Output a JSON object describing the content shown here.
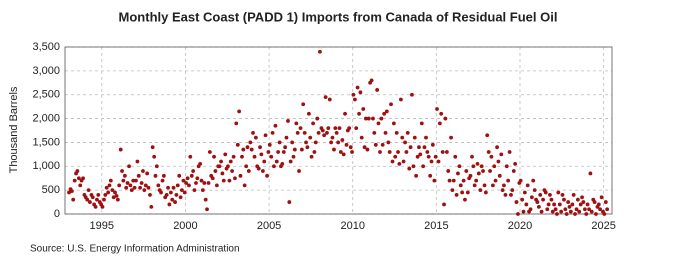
{
  "chart_data": {
    "type": "scatter",
    "title": "Monthly East Coast (PADD 1) Imports from Canada of Residual Fuel Oil",
    "y_label": "Thousand Barrels",
    "source": "Source: U.S. Energy Information Administration",
    "color": "#a01010",
    "grid": true,
    "xlim": [
      1992.8,
      2025.5
    ],
    "xticks": [
      1995,
      2000,
      2005,
      2010,
      2015,
      2020,
      2025
    ],
    "ylim": [
      0,
      3500
    ],
    "yticks": [
      0,
      500,
      {
        "value": 1000,
        "label": "1,000"
      },
      {
        "value": 1500,
        "label": "1,500"
      },
      {
        "value": 2000,
        "label": "2,000"
      },
      {
        "value": 2500,
        "label": "2,500"
      },
      {
        "value": 3000,
        "label": "3,000"
      },
      {
        "value": 3500,
        "label": "3,500"
      }
    ],
    "x": [
      1993.04,
      1993.13,
      1993.21,
      1993.29,
      1993.38,
      1993.46,
      1993.54,
      1993.63,
      1993.71,
      1993.79,
      1993.88,
      1993.96,
      1994.04,
      1994.13,
      1994.21,
      1994.29,
      1994.38,
      1994.46,
      1994.54,
      1994.63,
      1994.71,
      1994.79,
      1994.88,
      1994.96,
      1995.04,
      1995.13,
      1995.21,
      1995.29,
      1995.38,
      1995.46,
      1995.54,
      1995.63,
      1995.71,
      1995.79,
      1995.88,
      1995.96,
      1996.04,
      1996.13,
      1996.21,
      1996.29,
      1996.38,
      1996.46,
      1996.54,
      1996.63,
      1996.71,
      1996.79,
      1996.88,
      1996.96,
      1997.04,
      1997.13,
      1997.21,
      1997.29,
      1997.38,
      1997.46,
      1997.54,
      1997.63,
      1997.71,
      1997.79,
      1997.88,
      1997.96,
      1998.04,
      1998.13,
      1998.21,
      1998.29,
      1998.38,
      1998.46,
      1998.54,
      1998.63,
      1998.71,
      1998.79,
      1998.88,
      1998.96,
      1999.04,
      1999.13,
      1999.21,
      1999.29,
      1999.38,
      1999.46,
      1999.54,
      1999.63,
      1999.71,
      1999.79,
      1999.88,
      1999.96,
      2000.04,
      2000.13,
      2000.21,
      2000.29,
      2000.38,
      2000.46,
      2000.54,
      2000.63,
      2000.71,
      2000.79,
      2000.88,
      2000.96,
      2001.04,
      2001.13,
      2001.21,
      2001.29,
      2001.38,
      2001.46,
      2001.54,
      2001.63,
      2001.71,
      2001.79,
      2001.88,
      2001.96,
      2002.04,
      2002.13,
      2002.21,
      2002.29,
      2002.38,
      2002.46,
      2002.54,
      2002.63,
      2002.71,
      2002.79,
      2002.88,
      2002.96,
      2003.04,
      2003.13,
      2003.21,
      2003.29,
      2003.38,
      2003.46,
      2003.54,
      2003.63,
      2003.71,
      2003.79,
      2003.88,
      2003.96,
      2004.04,
      2004.13,
      2004.21,
      2004.29,
      2004.38,
      2004.46,
      2004.54,
      2004.63,
      2004.71,
      2004.79,
      2004.88,
      2004.96,
      2005.04,
      2005.13,
      2005.21,
      2005.29,
      2005.38,
      2005.46,
      2005.54,
      2005.63,
      2005.71,
      2005.79,
      2005.88,
      2005.96,
      2006.04,
      2006.13,
      2006.21,
      2006.29,
      2006.38,
      2006.46,
      2006.54,
      2006.63,
      2006.71,
      2006.79,
      2006.88,
      2006.96,
      2007.04,
      2007.13,
      2007.21,
      2007.29,
      2007.38,
      2007.46,
      2007.54,
      2007.63,
      2007.71,
      2007.79,
      2007.88,
      2007.96,
      2008.04,
      2008.13,
      2008.21,
      2008.29,
      2008.38,
      2008.46,
      2008.54,
      2008.63,
      2008.71,
      2008.79,
      2008.88,
      2008.96,
      2009.04,
      2009.13,
      2009.21,
      2009.29,
      2009.38,
      2009.46,
      2009.54,
      2009.63,
      2009.71,
      2009.79,
      2009.88,
      2009.96,
      2010.04,
      2010.13,
      2010.21,
      2010.29,
      2010.38,
      2010.46,
      2010.54,
      2010.63,
      2010.71,
      2010.79,
      2010.88,
      2010.96,
      2011.04,
      2011.13,
      2011.21,
      2011.29,
      2011.38,
      2011.46,
      2011.54,
      2011.63,
      2011.71,
      2011.79,
      2011.88,
      2011.96,
      2012.04,
      2012.13,
      2012.21,
      2012.29,
      2012.38,
      2012.46,
      2012.54,
      2012.63,
      2012.71,
      2012.79,
      2012.88,
      2012.96,
      2013.04,
      2013.13,
      2013.21,
      2013.29,
      2013.38,
      2013.46,
      2013.54,
      2013.63,
      2013.71,
      2013.79,
      2013.88,
      2013.96,
      2014.04,
      2014.13,
      2014.21,
      2014.29,
      2014.38,
      2014.46,
      2014.54,
      2014.63,
      2014.71,
      2014.79,
      2014.88,
      2014.96,
      2015.04,
      2015.13,
      2015.21,
      2015.29,
      2015.38,
      2015.46,
      2015.54,
      2015.63,
      2015.71,
      2015.79,
      2015.88,
      2015.96,
      2016.04,
      2016.13,
      2016.21,
      2016.29,
      2016.38,
      2016.46,
      2016.54,
      2016.63,
      2016.71,
      2016.79,
      2016.88,
      2016.96,
      2017.04,
      2017.13,
      2017.21,
      2017.29,
      2017.38,
      2017.46,
      2017.54,
      2017.63,
      2017.71,
      2017.79,
      2017.88,
      2017.96,
      2018.04,
      2018.13,
      2018.21,
      2018.29,
      2018.38,
      2018.46,
      2018.54,
      2018.63,
      2018.71,
      2018.79,
      2018.88,
      2018.96,
      2019.04,
      2019.13,
      2019.21,
      2019.29,
      2019.38,
      2019.46,
      2019.54,
      2019.63,
      2019.71,
      2019.79,
      2019.88,
      2019.96,
      2020.04,
      2020.13,
      2020.21,
      2020.29,
      2020.38,
      2020.46,
      2020.54,
      2020.63,
      2020.71,
      2020.79,
      2020.88,
      2020.96,
      2021.04,
      2021.13,
      2021.21,
      2021.29,
      2021.38,
      2021.46,
      2021.54,
      2021.63,
      2021.71,
      2021.79,
      2021.88,
      2021.96,
      2022.04,
      2022.13,
      2022.21,
      2022.29,
      2022.38,
      2022.46,
      2022.54,
      2022.63,
      2022.71,
      2022.79,
      2022.88,
      2022.96,
      2023.04,
      2023.13,
      2023.21,
      2023.29,
      2023.38,
      2023.46,
      2023.54,
      2023.63,
      2023.71,
      2023.79,
      2023.88,
      2023.96,
      2024.04,
      2024.13,
      2024.21,
      2024.29,
      2024.38,
      2024.46,
      2024.54,
      2024.63,
      2024.71,
      2024.79,
      2024.88,
      2024.96,
      2025.04,
      2025.13,
      2025.21
    ],
    "values": [
      450,
      520,
      480,
      300,
      700,
      850,
      900,
      750,
      600,
      700,
      750,
      400,
      350,
      300,
      500,
      250,
      400,
      350,
      200,
      150,
      300,
      400,
      250,
      200,
      150,
      300,
      400,
      550,
      450,
      600,
      700,
      500,
      350,
      450,
      380,
      300,
      600,
      1350,
      900,
      700,
      800,
      550,
      650,
      1000,
      600,
      500,
      700,
      550,
      700,
      1100,
      800,
      550,
      650,
      900,
      500,
      600,
      850,
      550,
      400,
      150,
      1400,
      1200,
      800,
      1000,
      600,
      500,
      450,
      700,
      800,
      350,
      400,
      550,
      200,
      450,
      300,
      550,
      250,
      400,
      600,
      800,
      350,
      500,
      700,
      450,
      650,
      750,
      600,
      1200,
      800,
      900,
      500,
      650,
      750,
      1000,
      1050,
      700,
      500,
      650,
      300,
      100,
      650,
      1300,
      800,
      750,
      1200,
      900,
      600,
      1000,
      1000,
      1100,
      850,
      700,
      1250,
      950,
      1000,
      700,
      1100,
      900,
      1200,
      750,
      1900,
      1450,
      2150,
      800,
      1200,
      1350,
      600,
      1000,
      1400,
      900,
      1500,
      1350,
      1700,
      1200,
      1600,
      1000,
      950,
      1400,
      1250,
      900,
      1100,
      1650,
      800,
      1300,
      1450,
      1200,
      1700,
      1000,
      1850,
      1100,
      1300,
      1500,
      1000,
      1050,
      1300,
      1400,
      1600,
      1950,
      250,
      1100,
      1500,
      1200,
      1350,
      1900,
      1700,
      900,
      1800,
      1350,
      2300,
      1700,
      1500,
      1400,
      2100,
      1600,
      1200,
      1900,
      1300,
      1500,
      2000,
      1700,
      3400,
      1800,
      1750,
      1650,
      2450,
      1700,
      1800,
      2400,
      1500,
      1600,
      1350,
      1800,
      1700,
      1500,
      1800,
      1300,
      1550,
      1250,
      2100,
      1450,
      1750,
      1800,
      1400,
      1300,
      2500,
      2400,
      1800,
      2650,
      2100,
      2550,
      1600,
      2200,
      1400,
      2000,
      1350,
      2000,
      2750,
      2800,
      2000,
      1700,
      1450,
      2600,
      1900,
      1300,
      2000,
      1450,
      2100,
      1700,
      2150,
      1500,
      1300,
      2300,
      1100,
      1900,
      1200,
      1700,
      1300,
      1050,
      2400,
      1600,
      1100,
      1500,
      1300,
      1700,
      950,
      1400,
      2500,
      1000,
      1600,
      800,
      1200,
      1400,
      1250,
      1900,
      1000,
      1400,
      1600,
      1300,
      1200,
      800,
      1100,
      1450,
      700,
      1200,
      2200,
      1100,
      1900,
      2100,
      1300,
      200,
      2000,
      1300,
      900,
      700,
      1600,
      500,
      700,
      1200,
      400,
      850,
      1000,
      600,
      450,
      700,
      300,
      900,
      450,
      750,
      800,
      1200,
      1000,
      600,
      700,
      1050,
      850,
      500,
      1000,
      900,
      600,
      450,
      1650,
      1300,
      900,
      1200,
      600,
      1000,
      700,
      1400,
      1100,
      800,
      1250,
      500,
      600,
      400,
      1000,
      700,
      1300,
      400,
      500,
      900,
      1050,
      250,
      0,
      650,
      700,
      300,
      50,
      450,
      200,
      600,
      50,
      100,
      350,
      700,
      500,
      300,
      250,
      150,
      400,
      50,
      300,
      500,
      450,
      100,
      200,
      400,
      300,
      50,
      200,
      100,
      0,
      450,
      200,
      50,
      400,
      300,
      100,
      0,
      250,
      150,
      50,
      200,
      400,
      0,
      100,
      300,
      50,
      200,
      350,
      250,
      100,
      0,
      200,
      100,
      850,
      50,
      300,
      250,
      0,
      150,
      200,
      100,
      350,
      50,
      0,
      250,
      100
    ]
  }
}
